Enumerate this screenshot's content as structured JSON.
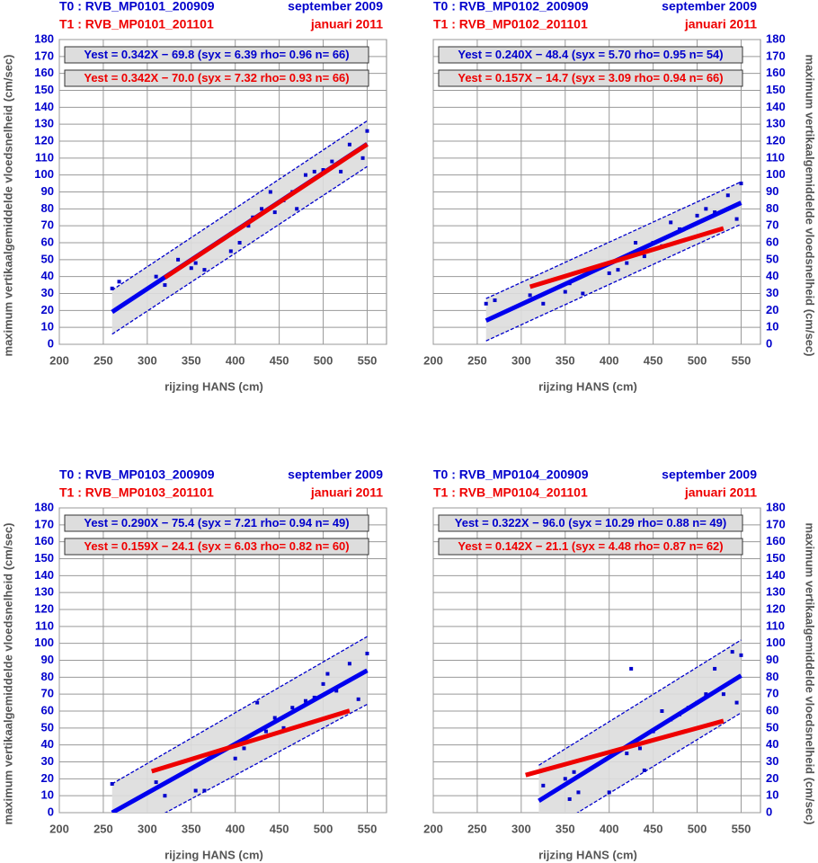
{
  "chart_data": [
    {
      "type": "scatter",
      "y_axis_side": "left",
      "header": [
        {
          "text": "T0 : RVB_MP0101_200909",
          "date": "september 2009",
          "color": "#0000cc"
        },
        {
          "text": "T1 : RVB_MP0101_201101",
          "date": "januari 2011",
          "color": "#ee0000"
        }
      ],
      "annotations": [
        {
          "text": "Yest = 0.342X − 69.8 (syx = 6.39 rho= 0.96 n= 66)",
          "color": "#0000cc"
        },
        {
          "text": "Yest = 0.342X − 70.0 (syx = 7.32 rho= 0.93 n= 66)",
          "color": "#ee0000"
        }
      ],
      "xlabel": "rijzing HANS (cm)",
      "ylabel": "maximum vertikaalgemiddelde vloedsnelheid (cm/sec)",
      "xlim": [
        200,
        572
      ],
      "ylim": [
        0,
        180
      ],
      "xticks": [
        200,
        250,
        300,
        350,
        400,
        450,
        500,
        550
      ],
      "yticks": [
        0,
        10,
        20,
        30,
        40,
        50,
        60,
        70,
        80,
        90,
        100,
        110,
        120,
        130,
        140,
        150,
        160,
        170,
        180
      ],
      "grid": true,
      "band": {
        "x": [
          260,
          550
        ],
        "upper": [
          32,
          132
        ],
        "lower": [
          6,
          105
        ],
        "color": "#0000cc"
      },
      "series": [
        {
          "style": "points",
          "color": "#0000cc",
          "x": [
            260,
            268,
            310,
            320,
            335,
            350,
            355,
            365,
            395,
            405,
            415,
            420,
            430,
            440,
            445,
            455,
            465,
            470,
            480,
            490,
            500,
            510,
            520,
            530,
            545,
            550
          ],
          "values": [
            33,
            37,
            40,
            35,
            50,
            45,
            48,
            44,
            55,
            60,
            70,
            75,
            80,
            90,
            78,
            85,
            90,
            80,
            100,
            102,
            103,
            108,
            102,
            118,
            110,
            126
          ]
        },
        {
          "style": "line",
          "color": "#0000ee",
          "x": [
            260,
            550
          ],
          "values": [
            19.1,
            118.3
          ]
        },
        {
          "style": "line",
          "color": "#ee0000",
          "x": [
            320,
            550
          ],
          "values": [
            39.4,
            118.1
          ]
        }
      ]
    },
    {
      "type": "scatter",
      "y_axis_side": "right",
      "header": [
        {
          "text": "T0 : RVB_MP0102_200909",
          "date": "september 2009",
          "color": "#0000cc"
        },
        {
          "text": "T1 : RVB_MP0102_201101",
          "date": "januari 2011",
          "color": "#ee0000"
        }
      ],
      "annotations": [
        {
          "text": "Yest = 0.240X − 48.4 (syx = 5.70 rho= 0.95 n= 54)",
          "color": "#0000cc"
        },
        {
          "text": "Yest = 0.157X − 14.7 (syx = 3.09 rho= 0.94 n= 66)",
          "color": "#ee0000"
        }
      ],
      "xlabel": "rijzing HANS (cm)",
      "ylabel": "maximum vertikaalgemiddelde vloedsnelheid (cm/sec)",
      "xlim": [
        200,
        572
      ],
      "ylim": [
        0,
        180
      ],
      "xticks": [
        200,
        250,
        300,
        350,
        400,
        450,
        500,
        550
      ],
      "yticks": [
        0,
        10,
        20,
        30,
        40,
        50,
        60,
        70,
        80,
        90,
        100,
        110,
        120,
        130,
        140,
        150,
        160,
        170,
        180
      ],
      "grid": true,
      "band": {
        "x": [
          260,
          550
        ],
        "upper": [
          27,
          96
        ],
        "lower": [
          2,
          71
        ],
        "color": "#0000cc"
      },
      "series": [
        {
          "style": "points",
          "color": "#0000cc",
          "x": [
            260,
            270,
            310,
            325,
            350,
            355,
            370,
            400,
            410,
            420,
            430,
            440,
            450,
            460,
            470,
            480,
            500,
            510,
            520,
            535,
            545,
            550
          ],
          "values": [
            24,
            26,
            29,
            24,
            31,
            36,
            30,
            42,
            44,
            48,
            60,
            52,
            60,
            58,
            72,
            68,
            76,
            80,
            78,
            88,
            74,
            95
          ]
        },
        {
          "style": "line",
          "color": "#0000ee",
          "x": [
            260,
            550
          ],
          "values": [
            14,
            83.6
          ]
        },
        {
          "style": "line",
          "color": "#ee0000",
          "x": [
            310,
            530
          ],
          "values": [
            34,
            68.5
          ]
        }
      ]
    },
    {
      "type": "scatter",
      "y_axis_side": "left",
      "header": [
        {
          "text": "T0 : RVB_MP0103_200909",
          "date": "september 2009",
          "color": "#0000cc"
        },
        {
          "text": "T1 : RVB_MP0103_201101",
          "date": "januari 2011",
          "color": "#ee0000"
        }
      ],
      "annotations": [
        {
          "text": "Yest = 0.290X − 75.4 (syx = 7.21 rho= 0.94 n= 49)",
          "color": "#0000cc"
        },
        {
          "text": "Yest = 0.159X − 24.1 (syx = 6.03 rho= 0.82 n= 60)",
          "color": "#ee0000"
        }
      ],
      "xlabel": "rijzing HANS (cm)",
      "ylabel": "maximum vertikaalgemiddelde vloedsnelheid (cm/sec)",
      "xlim": [
        200,
        572
      ],
      "ylim": [
        0,
        180
      ],
      "xticks": [
        200,
        250,
        300,
        350,
        400,
        450,
        500,
        550
      ],
      "yticks": [
        0,
        10,
        20,
        30,
        40,
        50,
        60,
        70,
        80,
        90,
        100,
        110,
        120,
        130,
        140,
        150,
        160,
        170,
        180
      ],
      "grid": true,
      "band": {
        "x": [
          260,
          550
        ],
        "upper": [
          17,
          104
        ],
        "lower": [
          -17,
          64
        ],
        "color": "#0000cc"
      },
      "series": [
        {
          "style": "points",
          "color": "#0000cc",
          "x": [
            260,
            310,
            320,
            355,
            365,
            400,
            410,
            425,
            435,
            445,
            455,
            465,
            480,
            490,
            500,
            505,
            515,
            530,
            540,
            550
          ],
          "values": [
            17,
            18,
            10,
            13,
            13,
            32,
            38,
            65,
            48,
            56,
            50,
            62,
            66,
            68,
            76,
            82,
            72,
            88,
            67,
            94
          ]
        },
        {
          "style": "line",
          "color": "#0000ee",
          "x": [
            260,
            550
          ],
          "values": [
            0,
            84
          ]
        },
        {
          "style": "line",
          "color": "#ee0000",
          "x": [
            305,
            530
          ],
          "values": [
            24.4,
            60.2
          ]
        }
      ]
    },
    {
      "type": "scatter",
      "y_axis_side": "right",
      "header": [
        {
          "text": "T0 : RVB_MP0104_200909",
          "date": "september 2009",
          "color": "#0000cc"
        },
        {
          "text": "T1 : RVB_MP0104_201101",
          "date": "januari 2011",
          "color": "#ee0000"
        }
      ],
      "annotations": [
        {
          "text": "Yest = 0.322X − 96.0 (syx = 10.29 rho= 0.88 n= 49)",
          "color": "#0000cc"
        },
        {
          "text": "Yest = 0.142X − 21.1 (syx = 4.48 rho= 0.87 n= 62)",
          "color": "#ee0000"
        }
      ],
      "xlabel": "rijzing HANS (cm)",
      "ylabel": "maximum vertikaalgemiddelde vloedsnelheid (cm/sec)",
      "xlim": [
        200,
        572
      ],
      "ylim": [
        0,
        180
      ],
      "xticks": [
        200,
        250,
        300,
        350,
        400,
        450,
        500,
        550
      ],
      "yticks": [
        0,
        10,
        20,
        30,
        40,
        50,
        60,
        70,
        80,
        90,
        100,
        110,
        120,
        130,
        140,
        150,
        160,
        170,
        180
      ],
      "grid": true,
      "band": {
        "x": [
          320,
          550
        ],
        "upper": [
          28,
          102
        ],
        "lower": [
          -14,
          59
        ],
        "color": "#0000cc"
      },
      "series": [
        {
          "style": "points",
          "color": "#0000cc",
          "x": [
            325,
            350,
            355,
            360,
            365,
            400,
            420,
            425,
            435,
            440,
            450,
            460,
            470,
            480,
            490,
            500,
            510,
            520,
            530,
            540,
            545,
            550
          ],
          "values": [
            16,
            20,
            8,
            24,
            12,
            12,
            35,
            85,
            38,
            25,
            48,
            60,
            55,
            58,
            62,
            65,
            70,
            85,
            70,
            95,
            65,
            93
          ]
        },
        {
          "style": "line",
          "color": "#0000ee",
          "x": [
            320,
            550
          ],
          "values": [
            7,
            81
          ]
        },
        {
          "style": "line",
          "color": "#ee0000",
          "x": [
            305,
            530
          ],
          "values": [
            22.2,
            54.2
          ]
        }
      ]
    }
  ]
}
